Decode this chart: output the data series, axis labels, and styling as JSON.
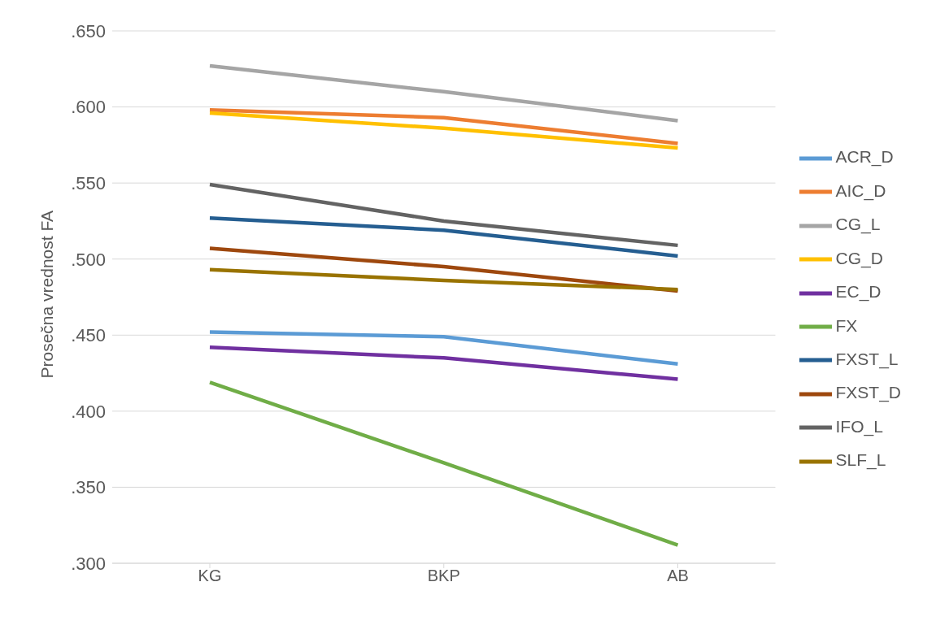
{
  "chart_data": {
    "type": "line",
    "ylabel": "Prosečna vrednost FA",
    "categories": [
      "KG",
      "BKP",
      "AB"
    ],
    "series": [
      {
        "name": "ACR_D",
        "color": "#5b9bd5",
        "values": [
          0.452,
          0.449,
          0.431
        ]
      },
      {
        "name": "AIC_D",
        "color": "#ed7d31",
        "values": [
          0.598,
          0.593,
          0.576
        ]
      },
      {
        "name": "CG_L",
        "color": "#a5a5a5",
        "values": [
          0.627,
          0.61,
          0.591
        ]
      },
      {
        "name": "CG_D",
        "color": "#ffc000",
        "values": [
          0.596,
          0.586,
          0.573
        ]
      },
      {
        "name": "EC_D",
        "color": "#7030a0",
        "values": [
          0.442,
          0.435,
          0.421
        ]
      },
      {
        "name": "FX",
        "color": "#70ad47",
        "values": [
          0.419,
          0.366,
          0.312
        ]
      },
      {
        "name": "FXST_L",
        "color": "#255e91",
        "values": [
          0.527,
          0.519,
          0.502
        ]
      },
      {
        "name": "FXST_D",
        "color": "#9e480e",
        "values": [
          0.507,
          0.495,
          0.479
        ]
      },
      {
        "name": "IFO_L",
        "color": "#636363",
        "values": [
          0.549,
          0.525,
          0.509
        ]
      },
      {
        "name": "SLF_L",
        "color": "#997300",
        "values": [
          0.493,
          0.486,
          0.48
        ]
      }
    ],
    "ylim": [
      0.3,
      0.65
    ],
    "yticks": [
      {
        "value": 0.3,
        "label": ".300"
      },
      {
        "value": 0.35,
        "label": ".350"
      },
      {
        "value": 0.4,
        "label": ".400"
      },
      {
        "value": 0.45,
        "label": ".450"
      },
      {
        "value": 0.5,
        "label": ".500"
      },
      {
        "value": 0.55,
        "label": ".550"
      },
      {
        "value": 0.6,
        "label": ".600"
      },
      {
        "value": 0.65,
        "label": ".650"
      }
    ],
    "grid": "y",
    "legend": "right",
    "marker": "none",
    "line_style": "solid"
  }
}
